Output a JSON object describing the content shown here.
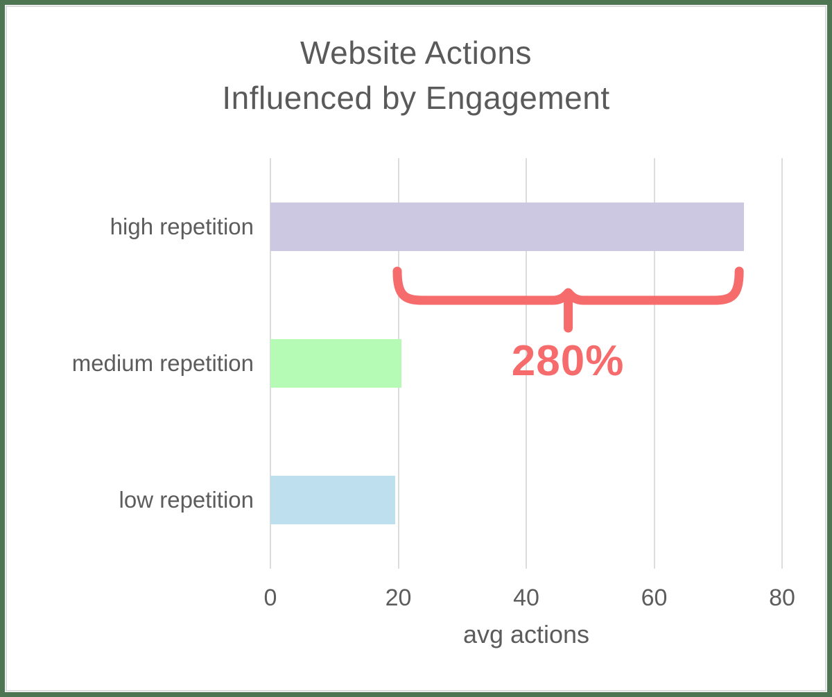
{
  "frame": {
    "border_color": "#4d7552",
    "inner_line_color": "#dcdcdc",
    "background": "#ffffff"
  },
  "chart_data": {
    "type": "bar",
    "orientation": "horizontal",
    "title_lines": [
      "Website Actions",
      "Influenced by Engagement"
    ],
    "xlabel": "avg actions",
    "categories": [
      "high repetition",
      "medium repetition",
      "low repetition"
    ],
    "values": [
      74,
      20.5,
      19.5
    ],
    "bar_colors": [
      "#ccc8e2",
      "#b5fab5",
      "#bedfed"
    ],
    "xticks": [
      0,
      20,
      40,
      60,
      80
    ],
    "xlim": [
      0,
      80
    ],
    "grid": true,
    "gridline_color": "#dcdcdc",
    "text_color": "#5c5c5c",
    "title_color": "#5a5a5a",
    "legend": "none",
    "annotation": {
      "text": "280%",
      "from_value": 20,
      "to_value": 74,
      "color": "#f66c6c",
      "style": "horizontal-curly-brace-pointing-down"
    }
  }
}
